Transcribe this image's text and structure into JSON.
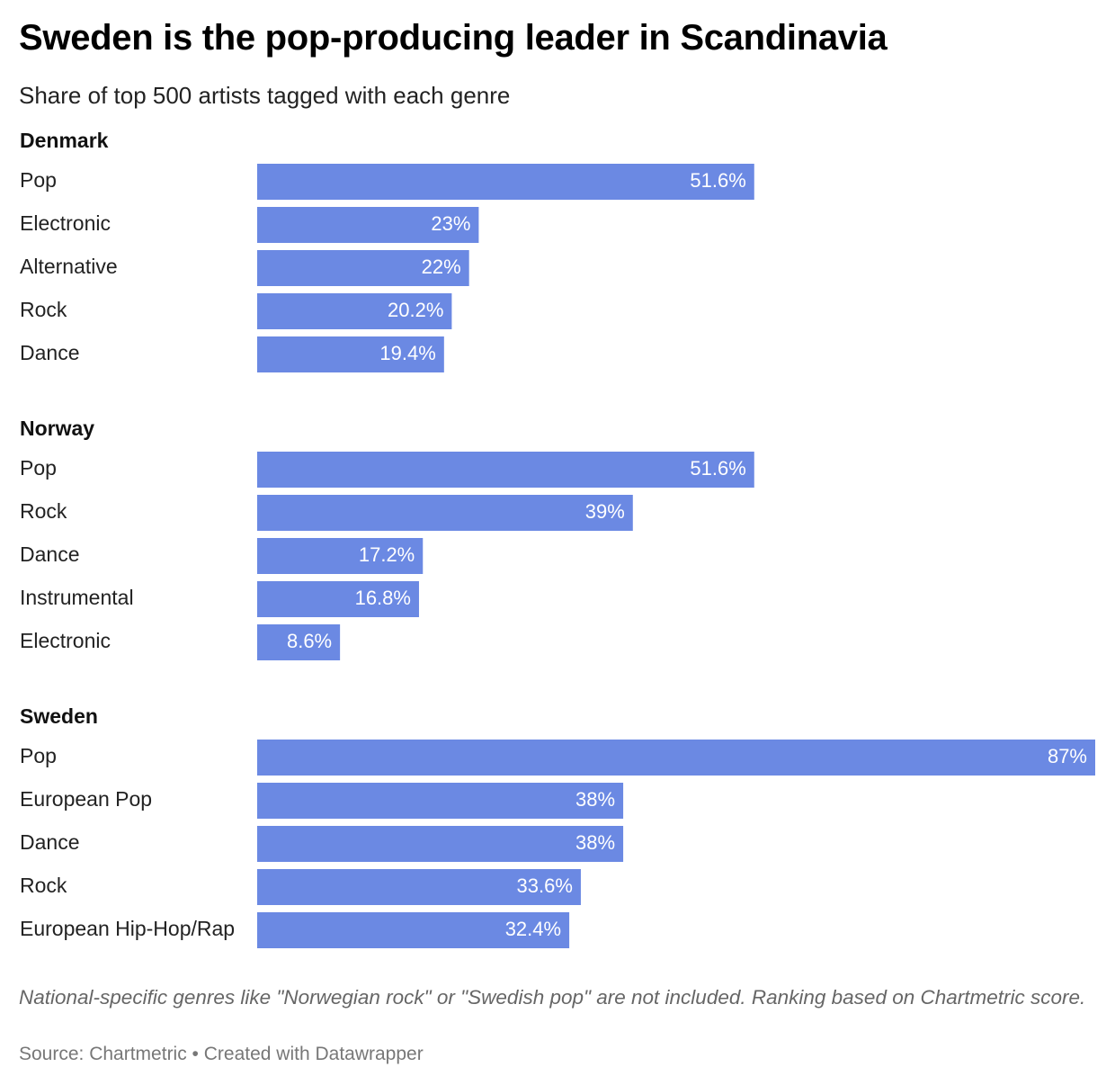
{
  "header": {
    "title": "Sweden is the pop-producing leader in Scandinavia",
    "subtitle": "Share of top 500 artists tagged with each genre"
  },
  "footer": {
    "notes": "National-specific genres like \"Norwegian rock\" or \"Swedish pop\" are not included. Ranking based on Chartmetric score.",
    "source": "Source: Chartmetric • Created with Datawrapper"
  },
  "colors": {
    "bar": "#6b89e3",
    "bar_label": "#ffffff"
  },
  "chart_data": {
    "type": "bar",
    "orientation": "horizontal",
    "value_suffix": "%",
    "xlim": [
      0,
      87
    ],
    "grid": false,
    "groups": [
      {
        "name": "Denmark",
        "categories": [
          "Pop",
          "Electronic",
          "Alternative",
          "Rock",
          "Dance"
        ],
        "values": [
          51.6,
          23,
          22,
          20.2,
          19.4
        ]
      },
      {
        "name": "Norway",
        "categories": [
          "Pop",
          "Rock",
          "Dance",
          "Instrumental",
          "Electronic"
        ],
        "values": [
          51.6,
          39,
          17.2,
          16.8,
          8.6
        ]
      },
      {
        "name": "Sweden",
        "categories": [
          "Pop",
          "European Pop",
          "Dance",
          "Rock",
          "European Hip-Hop/Rap"
        ],
        "values": [
          87,
          38,
          38,
          33.6,
          32.4
        ]
      }
    ]
  }
}
